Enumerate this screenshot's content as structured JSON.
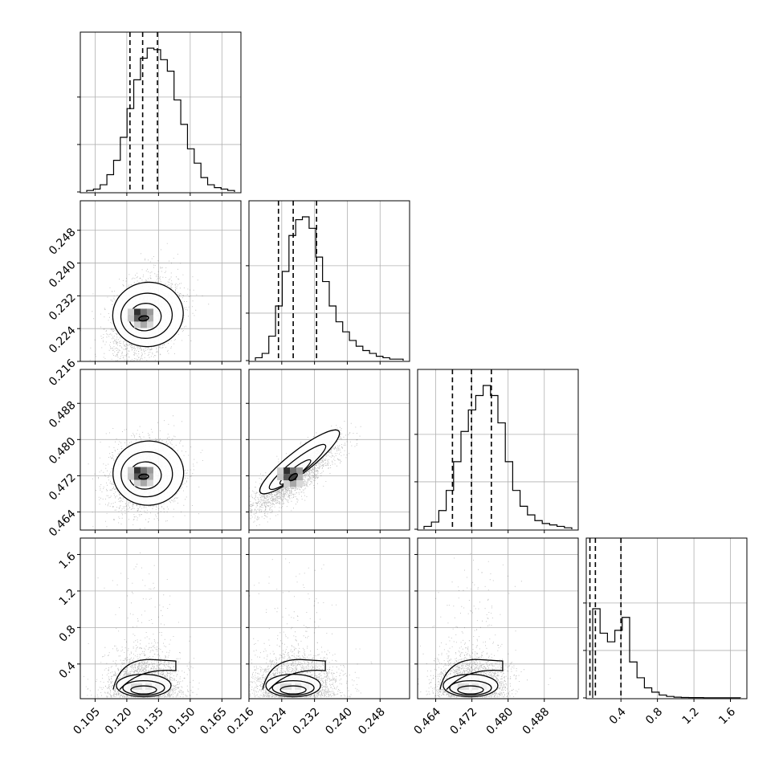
{
  "chart_data": {
    "type": "corner",
    "parameters": [
      {
        "index": 0,
        "range": [
          0.098,
          0.174
        ],
        "ticks": [
          0.105,
          0.12,
          0.135,
          0.15,
          0.165
        ],
        "tick_labels": [
          "0.105",
          "0.120",
          "0.135",
          "0.150",
          "0.165"
        ],
        "quantiles": [
          0.1215,
          0.1275,
          0.1345
        ],
        "mode": 0.1275
      },
      {
        "index": 1,
        "range": [
          0.216,
          0.2552
        ],
        "ticks": [
          0.216,
          0.224,
          0.232,
          0.24,
          0.248
        ],
        "tick_labels": [
          "0.216",
          "0.224",
          "0.232",
          "0.240",
          "0.248"
        ],
        "quantiles": [
          0.2232,
          0.2268,
          0.2325
        ],
        "mode": 0.2265
      },
      {
        "index": 2,
        "range": [
          0.46,
          0.4955
        ],
        "ticks": [
          0.464,
          0.472,
          0.48,
          0.488
        ],
        "tick_labels": [
          "0.464",
          "0.472",
          "0.480",
          "0.488"
        ],
        "quantiles": [
          0.4677,
          0.4719,
          0.4763
        ],
        "mode": 0.4719
      },
      {
        "index": 3,
        "range": [
          0.02,
          1.78
        ],
        "ticks": [
          0.4,
          0.8,
          1.2,
          1.6
        ],
        "tick_labels": [
          "0.4",
          "0.8",
          "1.2",
          "1.6"
        ],
        "quantiles": [
          0.06,
          0.12,
          0.4
        ],
        "mode": 0.1
      }
    ],
    "grid": true,
    "histograms": [
      [
        0.01,
        0.02,
        0.05,
        0.12,
        0.22,
        0.38,
        0.58,
        0.78,
        0.93,
        1.0,
        0.99,
        0.92,
        0.84,
        0.64,
        0.47,
        0.3,
        0.2,
        0.1,
        0.05,
        0.03,
        0.02,
        0.01
      ],
      [
        0.02,
        0.05,
        0.17,
        0.38,
        0.62,
        0.87,
        0.98,
        1.0,
        0.92,
        0.72,
        0.55,
        0.38,
        0.27,
        0.2,
        0.14,
        0.1,
        0.07,
        0.05,
        0.03,
        0.02,
        0.01,
        0.01
      ],
      [
        0.02,
        0.05,
        0.13,
        0.27,
        0.47,
        0.68,
        0.83,
        0.93,
        1.0,
        0.93,
        0.74,
        0.47,
        0.27,
        0.16,
        0.1,
        0.06,
        0.04,
        0.03,
        0.02,
        0.01
      ],
      [
        0.62,
        0.45,
        0.39,
        0.47,
        0.56,
        0.25,
        0.14,
        0.07,
        0.04,
        0.02,
        0.01,
        0.005,
        0.003,
        0.002,
        0.002,
        0.001,
        0.001,
        0.001,
        0.001,
        0.001
      ]
    ],
    "pairs": [
      {
        "x": 0,
        "y": 1,
        "center": [
          0.128,
          0.2265
        ],
        "sd": [
          0.0075,
          0.0045
        ],
        "rho": 0.35
      },
      {
        "x": 0,
        "y": 2,
        "center": [
          0.128,
          0.4718
        ],
        "sd": [
          0.0075,
          0.0036
        ],
        "rho": 0.15
      },
      {
        "x": 1,
        "y": 2,
        "center": [
          0.2268,
          0.4717
        ],
        "sd": [
          0.0048,
          0.0036
        ],
        "rho": 0.85
      },
      {
        "x": 0,
        "y": 3,
        "center": [
          0.128,
          0.25
        ],
        "sd": [
          0.0075,
          0.22
        ],
        "rho": 0.25
      },
      {
        "x": 1,
        "y": 3,
        "center": [
          0.2268,
          0.25
        ],
        "sd": [
          0.0048,
          0.22
        ],
        "rho": 0.3
      },
      {
        "x": 2,
        "y": 3,
        "center": [
          0.4717,
          0.25
        ],
        "sd": [
          0.0036,
          0.22
        ],
        "rho": 0.25
      }
    ]
  }
}
